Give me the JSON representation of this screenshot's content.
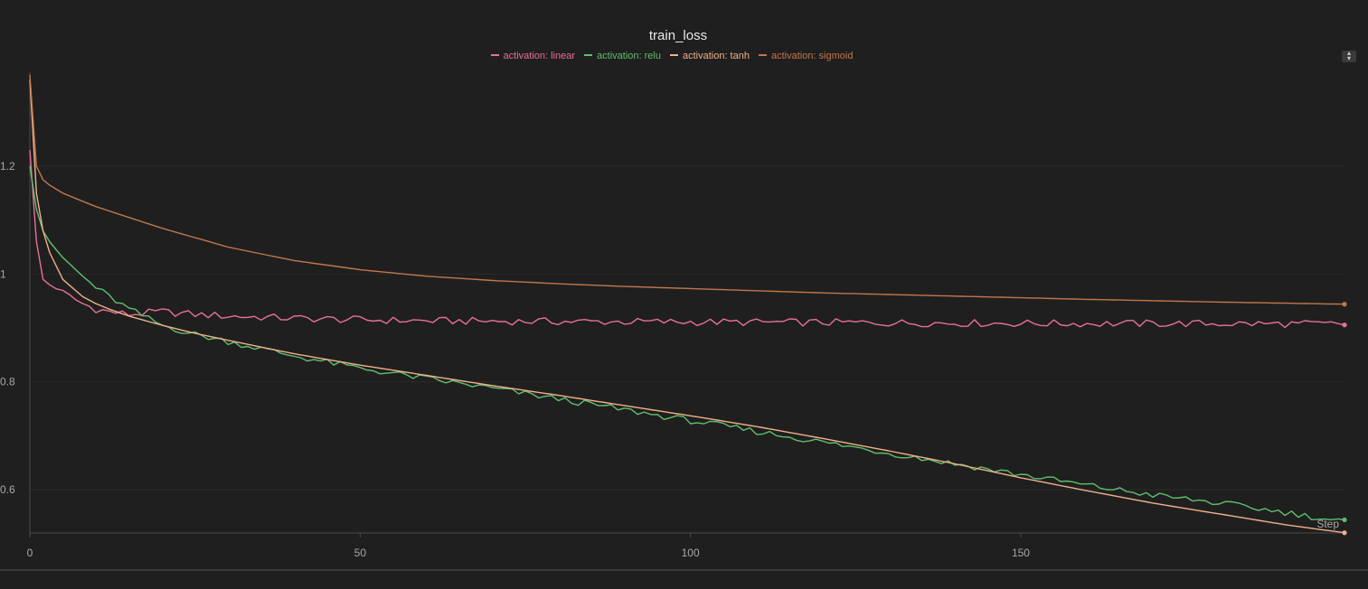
{
  "panel": {
    "title": "train_loss",
    "sort_toggle_up": "▴",
    "sort_toggle_down": "▾"
  },
  "chart_data": {
    "type": "line",
    "title": "train_loss",
    "xlabel": "Step",
    "ylabel": "",
    "xlim": [
      0,
      199
    ],
    "ylim": [
      0.52,
      1.38
    ],
    "x_ticks": [
      0,
      50,
      100,
      150
    ],
    "y_ticks": [
      0.6,
      0.8,
      1,
      1.2
    ],
    "x_tick_labels": [
      "0",
      "50",
      "100",
      "150"
    ],
    "y_tick_labels": [
      "0.6",
      "0.8",
      "1",
      "1.2"
    ],
    "grid": true,
    "legend_position": "top-center",
    "series": [
      {
        "name": "activation: linear",
        "color": "#e8709a",
        "x": [
          0,
          1,
          2,
          3,
          5,
          8,
          10,
          12,
          15,
          20,
          25,
          30,
          40,
          50,
          60,
          80,
          100,
          120,
          140,
          160,
          180,
          199
        ],
        "y": [
          1.23,
          1.06,
          0.99,
          0.98,
          0.965,
          0.945,
          0.935,
          0.93,
          0.925,
          0.93,
          0.925,
          0.922,
          0.918,
          0.915,
          0.913,
          0.912,
          0.911,
          0.91,
          0.909,
          0.908,
          0.908,
          0.907
        ],
        "noise": 0.007
      },
      {
        "name": "activation: relu",
        "color": "#5fbf6e",
        "x": [
          0,
          1,
          2,
          3,
          5,
          8,
          10,
          12,
          15,
          20,
          25,
          30,
          40,
          50,
          60,
          70,
          80,
          90,
          100,
          110,
          120,
          130,
          140,
          150,
          160,
          170,
          180,
          190,
          199
        ],
        "y": [
          1.2,
          1.12,
          1.08,
          1.06,
          1.03,
          0.995,
          0.975,
          0.958,
          0.935,
          0.905,
          0.888,
          0.875,
          0.848,
          0.825,
          0.806,
          0.788,
          0.768,
          0.748,
          0.728,
          0.708,
          0.688,
          0.668,
          0.648,
          0.628,
          0.608,
          0.59,
          0.575,
          0.558,
          0.54
        ],
        "noise": 0.006
      },
      {
        "name": "activation: tanh",
        "color": "#f0b08a",
        "x": [
          0,
          1,
          2,
          3,
          5,
          8,
          10,
          12,
          15,
          20,
          25,
          30,
          40,
          50,
          60,
          70,
          80,
          90,
          100,
          110,
          120,
          130,
          140,
          150,
          160,
          170,
          180,
          190,
          199
        ],
        "y": [
          1.36,
          1.15,
          1.08,
          1.04,
          0.99,
          0.958,
          0.945,
          0.935,
          0.922,
          0.905,
          0.89,
          0.877,
          0.852,
          0.831,
          0.812,
          0.793,
          0.775,
          0.756,
          0.737,
          0.717,
          0.695,
          0.672,
          0.648,
          0.622,
          0.598,
          0.575,
          0.555,
          0.535,
          0.52
        ],
        "noise": 0.0
      },
      {
        "name": "activation: sigmoid",
        "color": "#c0774a",
        "x": [
          0,
          1,
          2,
          3,
          5,
          8,
          10,
          15,
          20,
          30,
          40,
          50,
          60,
          70,
          80,
          90,
          100,
          120,
          140,
          160,
          180,
          199
        ],
        "y": [
          1.37,
          1.2,
          1.175,
          1.165,
          1.15,
          1.135,
          1.125,
          1.105,
          1.085,
          1.05,
          1.025,
          1.008,
          0.996,
          0.988,
          0.982,
          0.977,
          0.973,
          0.965,
          0.959,
          0.953,
          0.948,
          0.944
        ],
        "noise": 0.0
      }
    ]
  }
}
